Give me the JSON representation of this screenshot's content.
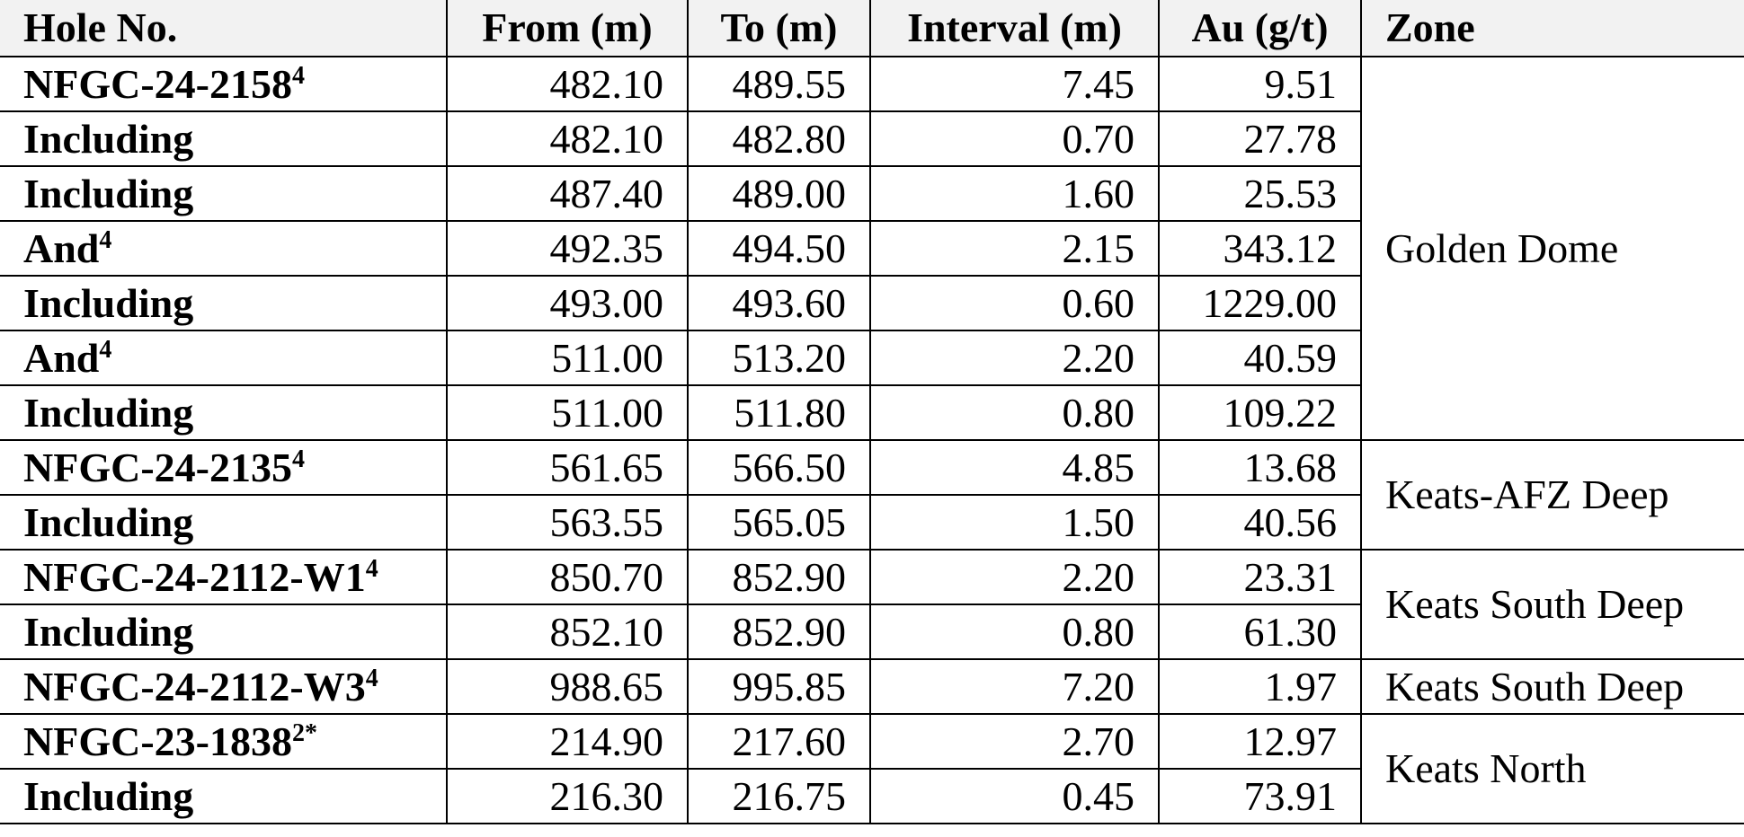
{
  "table": {
    "headers": [
      "Hole No.",
      "From (m)",
      "To (m)",
      "Interval (m)",
      "Au (g/t)",
      "Zone"
    ],
    "rows": [
      {
        "hole": "NFGC-24-2158",
        "note": "4",
        "from": "482.10",
        "to": "489.55",
        "interval": "7.45",
        "au": "9.51"
      },
      {
        "hole": "Including",
        "from": "482.10",
        "to": "482.80",
        "interval": "0.70",
        "au": "27.78"
      },
      {
        "hole": "Including",
        "from": "487.40",
        "to": "489.00",
        "interval": "1.60",
        "au": "25.53"
      },
      {
        "hole": "And",
        "note": "4",
        "from": "492.35",
        "to": "494.50",
        "interval": "2.15",
        "au": "343.12"
      },
      {
        "hole": "Including",
        "from": "493.00",
        "to": "493.60",
        "interval": "0.60",
        "au": "1229.00"
      },
      {
        "hole": "And",
        "note": "4",
        "from": "511.00",
        "to": "513.20",
        "interval": "2.20",
        "au": "40.59"
      },
      {
        "hole": "Including",
        "from": "511.00",
        "to": "511.80",
        "interval": "0.80",
        "au": "109.22"
      },
      {
        "hole": "NFGC-24-2135",
        "note": "4",
        "from": "561.65",
        "to": "566.50",
        "interval": "4.85",
        "au": "13.68"
      },
      {
        "hole": "Including",
        "from": "563.55",
        "to": "565.05",
        "interval": "1.50",
        "au": "40.56"
      },
      {
        "hole": "NFGC-24-2112-W1",
        "note": "4",
        "from": "850.70",
        "to": "852.90",
        "interval": "2.20",
        "au": "23.31"
      },
      {
        "hole": "Including",
        "from": "852.10",
        "to": "852.90",
        "interval": "0.80",
        "au": "61.30"
      },
      {
        "hole": "NFGC-24-2112-W3",
        "note": "4",
        "from": "988.65",
        "to": "995.85",
        "interval": "7.20",
        "au": "1.97"
      },
      {
        "hole": "NFGC-23-1838",
        "note": "2*",
        "from": "214.90",
        "to": "217.60",
        "interval": "2.70",
        "au": "12.97"
      },
      {
        "hole": "Including",
        "from": "216.30",
        "to": "216.75",
        "interval": "0.45",
        "au": "73.91"
      }
    ],
    "zones": [
      {
        "name": "Golden Dome",
        "first_row": 0,
        "rows": 7
      },
      {
        "name": "Keats-AFZ Deep",
        "first_row": 7,
        "rows": 2
      },
      {
        "name": "Keats South Deep",
        "first_row": 9,
        "rows": 2
      },
      {
        "name": "Keats South Deep",
        "first_row": 11,
        "rows": 1
      },
      {
        "name": "Keats North",
        "first_row": 12,
        "rows": 2
      }
    ]
  }
}
